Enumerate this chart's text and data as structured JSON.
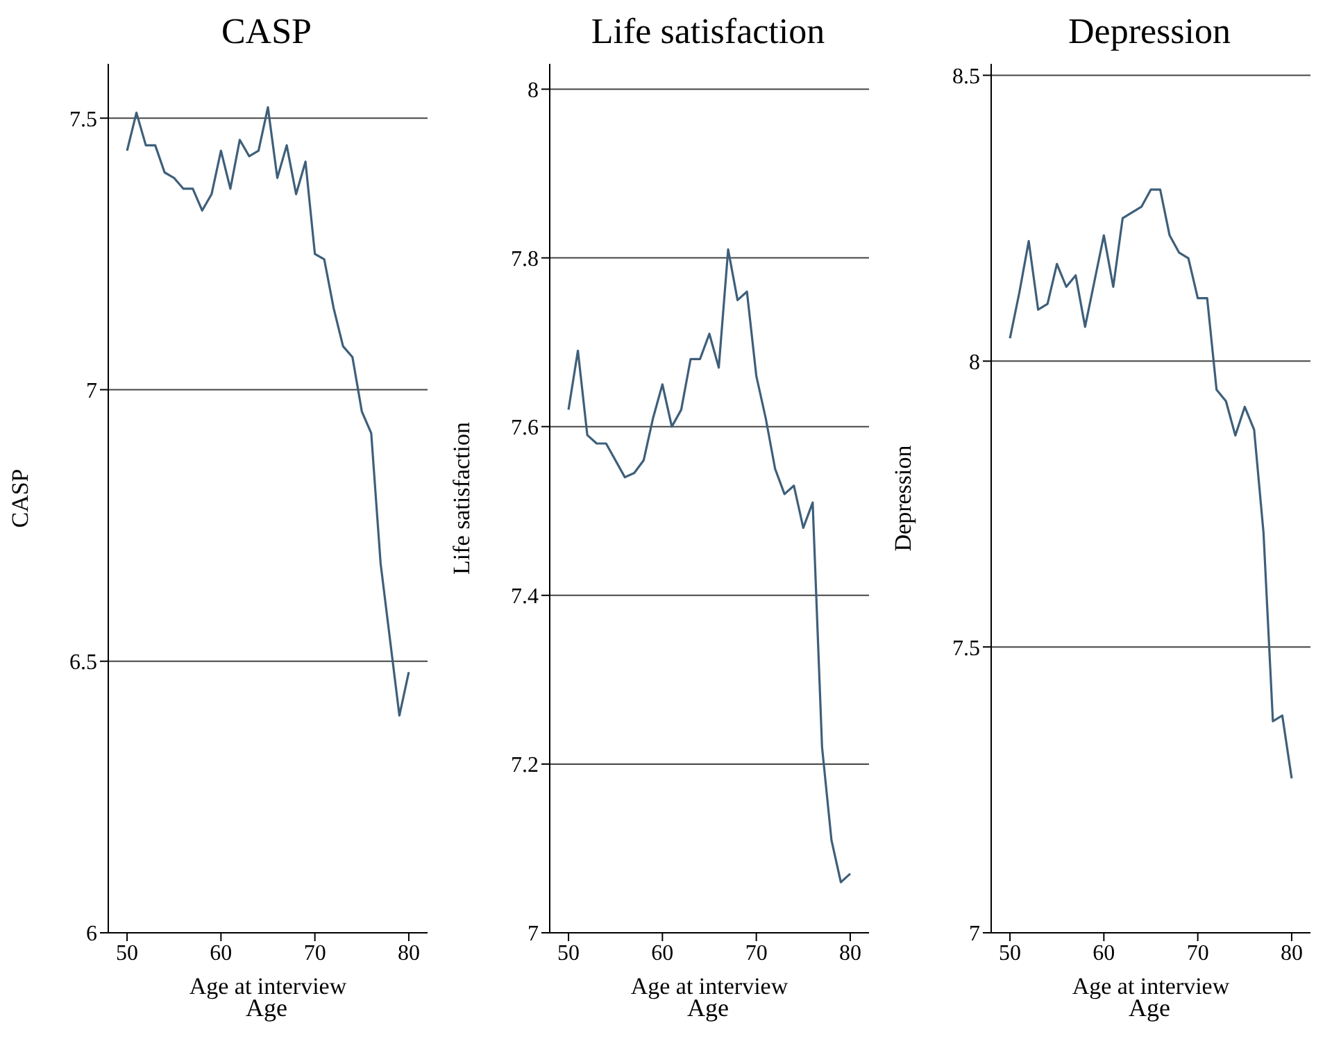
{
  "chart_data": [
    {
      "type": "line",
      "title": "CASP",
      "xlabel": "Age at interview",
      "ylabel": "CASP",
      "annotations": [
        "Age"
      ],
      "x": [
        50,
        51,
        52,
        53,
        54,
        55,
        56,
        57,
        58,
        59,
        60,
        61,
        62,
        63,
        64,
        65,
        66,
        67,
        68,
        69,
        70,
        71,
        72,
        73,
        74,
        75,
        76,
        77,
        78,
        79,
        80
      ],
      "series": [
        {
          "color": "#3e5f7a",
          "values": [
            7.44,
            7.51,
            7.45,
            7.45,
            7.4,
            7.39,
            7.37,
            7.37,
            7.33,
            7.36,
            7.44,
            7.37,
            7.46,
            7.43,
            7.44,
            7.52,
            7.39,
            7.45,
            7.36,
            7.42,
            7.25,
            7.24,
            7.15,
            7.08,
            7.06,
            6.96,
            6.92,
            6.68,
            6.54,
            6.4,
            6.48
          ]
        }
      ],
      "xlim": [
        48,
        82
      ],
      "xticks": [
        50,
        60,
        70,
        80
      ],
      "ylim": [
        6,
        7.6
      ],
      "yticks": [
        6,
        6.5,
        7,
        7.5
      ],
      "grid": "y",
      "marker": "none",
      "legend": false
    },
    {
      "type": "line",
      "title": "Life satisfaction",
      "xlabel": "Age at interview",
      "ylabel": "Life satisfaction",
      "annotations": [
        "Age"
      ],
      "x": [
        50,
        51,
        52,
        53,
        54,
        55,
        56,
        57,
        58,
        59,
        60,
        61,
        62,
        63,
        64,
        65,
        66,
        67,
        68,
        69,
        70,
        71,
        72,
        73,
        74,
        75,
        76,
        77,
        78,
        79,
        80
      ],
      "series": [
        {
          "color": "#3e5f7a",
          "values": [
            7.62,
            7.69,
            7.59,
            7.58,
            7.58,
            7.56,
            7.54,
            7.545,
            7.56,
            7.61,
            7.65,
            7.6,
            7.62,
            7.68,
            7.68,
            7.71,
            7.67,
            7.81,
            7.75,
            7.76,
            7.66,
            7.61,
            7.55,
            7.52,
            7.53,
            7.48,
            7.51,
            7.22,
            7.11,
            7.06,
            7.07
          ]
        }
      ],
      "xlim": [
        48,
        82
      ],
      "xticks": [
        50,
        60,
        70,
        80
      ],
      "ylim": [
        7,
        8.03
      ],
      "yticks": [
        7,
        7.2,
        7.4,
        7.6,
        7.8,
        8
      ],
      "grid": "y",
      "marker": "none",
      "legend": false
    },
    {
      "type": "line",
      "title": "Depression",
      "xlabel": "Age at interview",
      "ylabel": "Depression",
      "annotations": [
        "Age"
      ],
      "x": [
        50,
        51,
        52,
        53,
        54,
        55,
        56,
        57,
        58,
        59,
        60,
        61,
        62,
        63,
        64,
        65,
        66,
        67,
        68,
        69,
        70,
        71,
        72,
        73,
        74,
        75,
        76,
        77,
        78,
        79,
        80
      ],
      "series": [
        {
          "color": "#3e5f7a",
          "values": [
            8.04,
            8.12,
            8.21,
            8.09,
            8.1,
            8.17,
            8.13,
            8.15,
            8.06,
            8.14,
            8.22,
            8.13,
            8.25,
            8.26,
            8.27,
            8.3,
            8.3,
            8.22,
            8.19,
            8.18,
            8.11,
            8.11,
            7.95,
            7.93,
            7.87,
            7.92,
            7.88,
            7.7,
            7.37,
            7.38,
            7.27
          ]
        }
      ],
      "xlim": [
        48,
        82
      ],
      "xticks": [
        50,
        60,
        70,
        80
      ],
      "ylim": [
        7,
        8.52
      ],
      "yticks": [
        7,
        7.5,
        8,
        8.5
      ],
      "grid": "y",
      "marker": "none",
      "legend": false
    }
  ]
}
